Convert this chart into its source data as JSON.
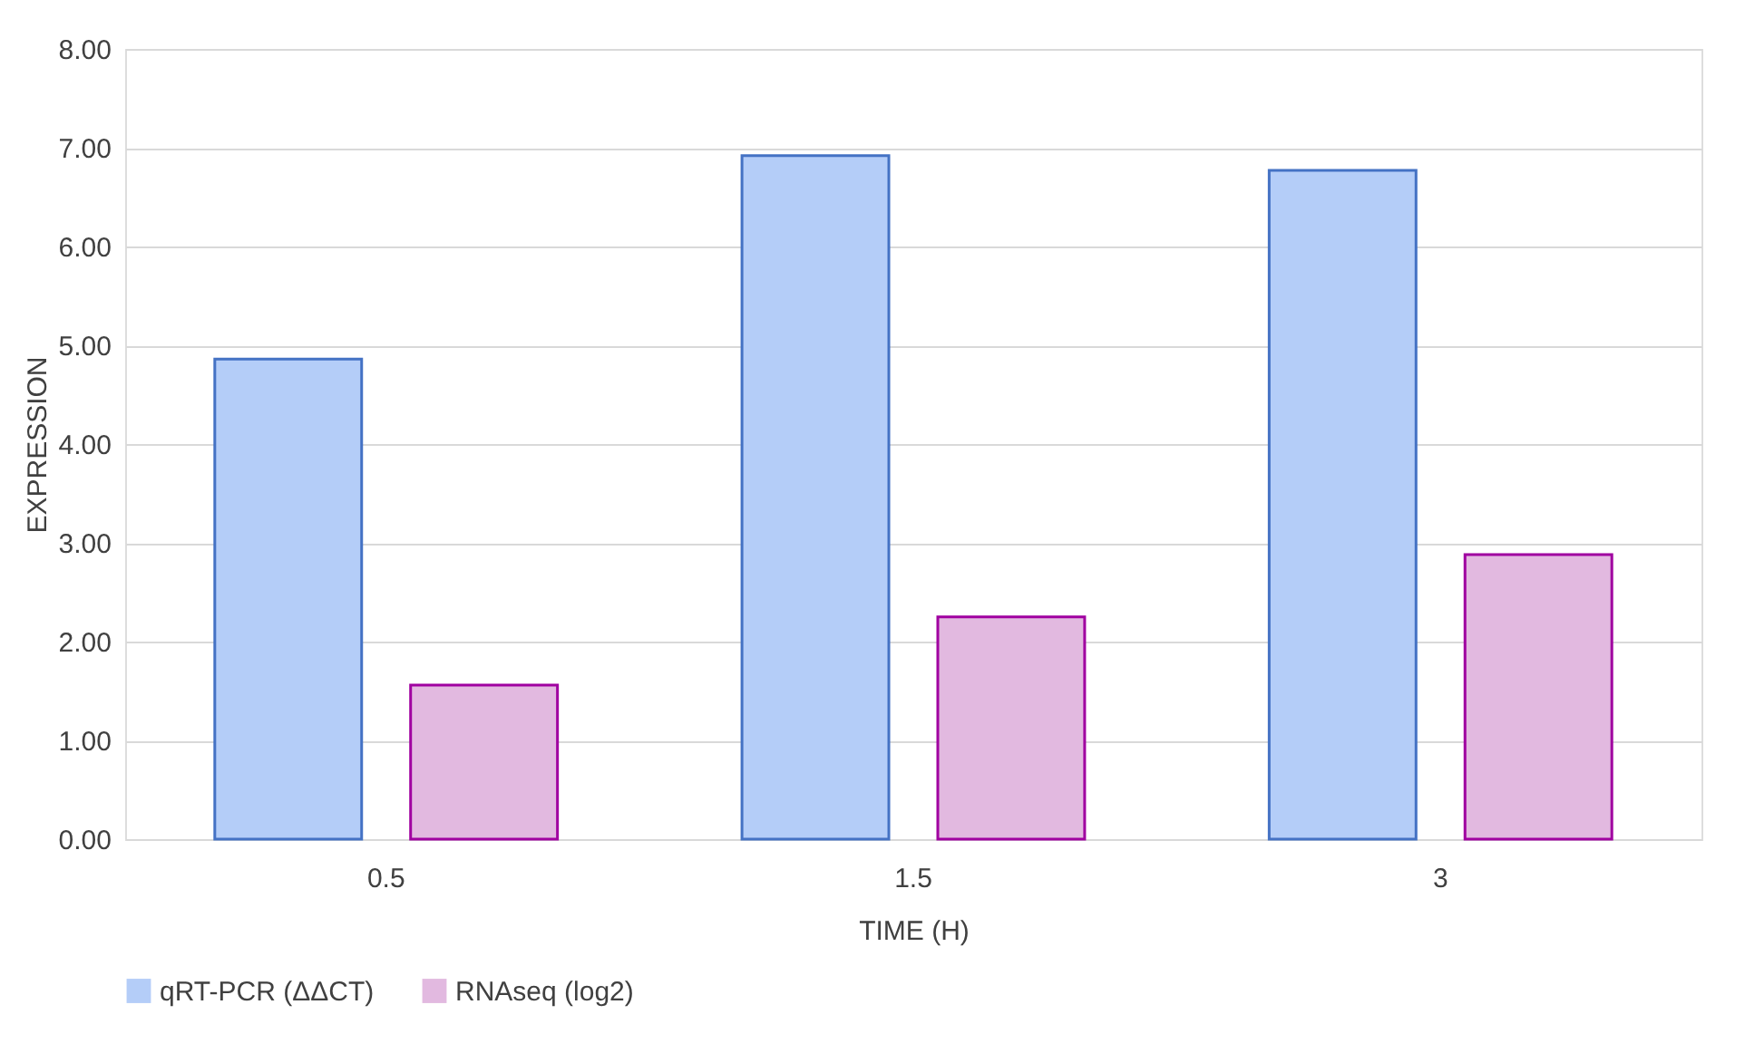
{
  "chart_data": {
    "type": "bar",
    "xlabel": "TIME (H)",
    "ylabel": "EXPRESSION",
    "categories": [
      "0.5",
      "1.5",
      "3"
    ],
    "series": [
      {
        "name": "qRT-PCR (ΔΔCT)",
        "color": "#b4cdf8",
        "values": [
          4.86,
          6.92,
          6.77
        ]
      },
      {
        "name": "RNAseq (log2)",
        "color": "#e2b9e0",
        "values": [
          1.56,
          2.25,
          2.88
        ]
      }
    ],
    "ylim": [
      0,
      8
    ],
    "yticks": [
      {
        "value": 0,
        "label": "0.00"
      },
      {
        "value": 1,
        "label": "1.00"
      },
      {
        "value": 2,
        "label": "2.00"
      },
      {
        "value": 3,
        "label": "3.00"
      },
      {
        "value": 4,
        "label": "4.00"
      },
      {
        "value": 5,
        "label": "5.00"
      },
      {
        "value": 6,
        "label": "6.00"
      },
      {
        "value": 7,
        "label": "7.00"
      },
      {
        "value": 8,
        "label": "8.00"
      }
    ],
    "grid": "y",
    "legend": "bottom"
  }
}
